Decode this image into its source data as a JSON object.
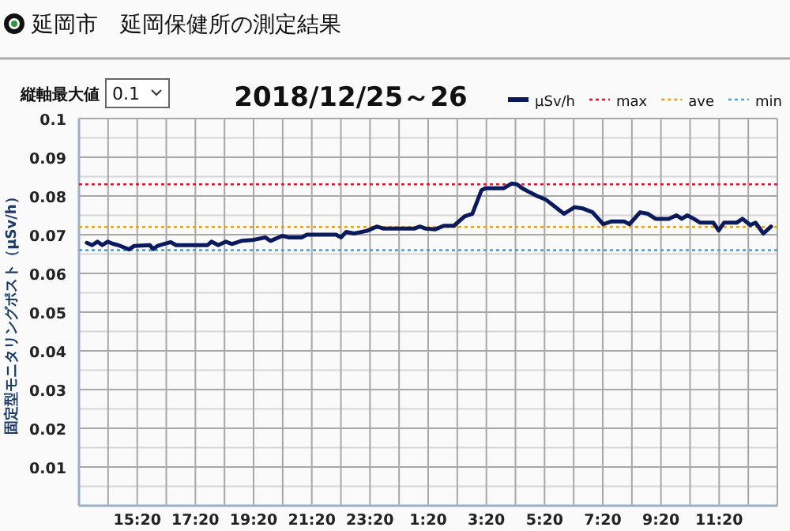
{
  "chart_data": {
    "type": "line",
    "title": "延岡市　延岡保健所の測定結果",
    "subtitle": "2018/12/25～26",
    "annotations": [
      "縦軸最大値",
      "0.1"
    ],
    "ylabel": "固定型モニタリングポスト（μSv/h）",
    "xlim": [
      "2018-12-25T13:20",
      "2018-12-26T13:20"
    ],
    "ylim": [
      0,
      0.1
    ],
    "xticks": [
      {
        "value": "2018-12-25T14:20",
        "label": null
      },
      {
        "value": "2018-12-25T15:20",
        "label": "15:20"
      },
      {
        "value": "2018-12-25T16:20",
        "label": null
      },
      {
        "value": "2018-12-25T17:20",
        "label": "17:20"
      },
      {
        "value": "2018-12-25T18:20",
        "label": null
      },
      {
        "value": "2018-12-25T19:20",
        "label": "19:20"
      },
      {
        "value": "2018-12-25T20:20",
        "label": null
      },
      {
        "value": "2018-12-25T21:20",
        "label": "21:20"
      },
      {
        "value": "2018-12-25T22:20",
        "label": null
      },
      {
        "value": "2018-12-25T23:20",
        "label": "23:20"
      },
      {
        "value": "2018-12-26T00:20",
        "label": null
      },
      {
        "value": "2018-12-26T01:20",
        "label": "1:20"
      },
      {
        "value": "2018-12-26T02:20",
        "label": null
      },
      {
        "value": "2018-12-26T03:20",
        "label": "3:20"
      },
      {
        "value": "2018-12-26T04:20",
        "label": null
      },
      {
        "value": "2018-12-26T05:20",
        "label": "5:20"
      },
      {
        "value": "2018-12-26T06:20",
        "label": null
      },
      {
        "value": "2018-12-26T07:20",
        "label": "7:20"
      },
      {
        "value": "2018-12-26T08:20",
        "label": null
      },
      {
        "value": "2018-12-26T09:20",
        "label": "9:20"
      },
      {
        "value": "2018-12-26T10:20",
        "label": null
      },
      {
        "value": "2018-12-26T11:20",
        "label": "11:20"
      },
      {
        "value": "2018-12-26T12:20",
        "label": null
      }
    ],
    "yticks": [
      {
        "value": 0.005,
        "label": null
      },
      0.01,
      {
        "value": 0.015,
        "label": null
      },
      0.02,
      {
        "value": 0.025,
        "label": null
      },
      0.03,
      {
        "value": 0.035,
        "label": null
      },
      0.04,
      {
        "value": 0.045,
        "label": null
      },
      0.05,
      {
        "value": 0.055,
        "label": null
      },
      0.06,
      {
        "value": 0.065,
        "label": null
      },
      0.07,
      {
        "value": 0.075,
        "label": null
      },
      0.08,
      {
        "value": 0.085,
        "label": null
      },
      0.09,
      {
        "value": 0.095,
        "label": null
      },
      0.1
    ],
    "grid": true,
    "legend": "top right",
    "series": [
      {
        "name": "μSv/h",
        "color": "#0a1a5c",
        "x": [
          "2018-12-25T13:36",
          "2018-12-25T13:47",
          "2018-12-25T13:58",
          "2018-12-25T14:08",
          "2018-12-25T14:19",
          "2018-12-25T14:31",
          "2018-12-25T14:41",
          "2018-12-25T15:03",
          "2018-12-25T15:14",
          "2018-12-25T15:46",
          "2018-12-25T15:53",
          "2018-12-25T16:02",
          "2018-12-25T16:29",
          "2018-12-25T16:40",
          "2018-12-25T17:45",
          "2018-12-25T17:53",
          "2018-12-25T18:07",
          "2018-12-25T18:23",
          "2018-12-25T18:35",
          "2018-12-25T18:55",
          "2018-12-25T19:17",
          "2018-12-25T19:44",
          "2018-12-25T19:55",
          "2018-12-25T20:19",
          "2018-12-25T20:32",
          "2018-12-25T20:59",
          "2018-12-25T21:10",
          "2018-12-25T22:10",
          "2018-12-25T22:20",
          "2018-12-25T22:31",
          "2018-12-25T22:47",
          "2018-12-25T23:14",
          "2018-12-25T23:34",
          "2018-12-25T23:47",
          "2018-12-26T00:52",
          "2018-12-26T01:03",
          "2018-12-26T01:14",
          "2018-12-26T01:35",
          "2018-12-26T01:52",
          "2018-12-26T02:13",
          "2018-12-26T02:35",
          "2018-12-26T02:51",
          "2018-12-26T03:10",
          "2018-12-26T03:18",
          "2018-12-26T03:56",
          "2018-12-26T04:12",
          "2018-12-26T04:23",
          "2018-12-26T04:34",
          "2018-12-26T04:50",
          "2018-12-26T05:06",
          "2018-12-26T05:22",
          "2018-12-26T06:00",
          "2018-12-26T06:22",
          "2018-12-26T06:38",
          "2018-12-26T06:59",
          "2018-12-26T07:21",
          "2018-12-26T07:37",
          "2018-12-26T08:04",
          "2018-12-26T08:15",
          "2018-12-26T08:37",
          "2018-12-26T08:53",
          "2018-12-26T09:09",
          "2018-12-26T09:36",
          "2018-12-26T09:52",
          "2018-12-26T10:03",
          "2018-12-26T10:14",
          "2018-12-26T10:25",
          "2018-12-26T10:41",
          "2018-12-26T11:08",
          "2018-12-26T11:19",
          "2018-12-26T11:30",
          "2018-12-26T11:56",
          "2018-12-26T12:08",
          "2018-12-26T12:24",
          "2018-12-26T12:35",
          "2018-12-26T12:51",
          "2018-12-26T13:07"
        ],
        "values": [
          0.0679,
          0.0673,
          0.0682,
          0.0673,
          0.0682,
          0.0676,
          0.0673,
          0.0662,
          0.0671,
          0.0673,
          0.0663,
          0.0671,
          0.0681,
          0.0673,
          0.0673,
          0.0682,
          0.0673,
          0.0682,
          0.0676,
          0.0684,
          0.0686,
          0.0693,
          0.0684,
          0.0697,
          0.0693,
          0.0693,
          0.07,
          0.07,
          0.0693,
          0.0707,
          0.0703,
          0.071,
          0.0721,
          0.0716,
          0.0716,
          0.0721,
          0.0716,
          0.0714,
          0.0723,
          0.0723,
          0.0747,
          0.0754,
          0.0815,
          0.082,
          0.082,
          0.0832,
          0.083,
          0.082,
          0.0809,
          0.0799,
          0.0791,
          0.0754,
          0.0771,
          0.0768,
          0.0758,
          0.0727,
          0.0734,
          0.0734,
          0.0727,
          0.0758,
          0.0754,
          0.0741,
          0.0741,
          0.075,
          0.0741,
          0.075,
          0.0743,
          0.0731,
          0.0731,
          0.0711,
          0.0731,
          0.0731,
          0.0741,
          0.0725,
          0.0731,
          0.0703,
          0.0721
        ]
      }
    ],
    "ref_lines": [
      {
        "axis": "y",
        "value": 0.083,
        "label": "max",
        "color": "#e8102a",
        "line_style": "dotted"
      },
      {
        "axis": "y",
        "value": 0.072,
        "label": "ave",
        "color": "#f0a010",
        "line_style": "dotted"
      },
      {
        "axis": "y",
        "value": 0.066,
        "label": "min",
        "color": "#40a8e0",
        "line_style": "dotted"
      }
    ]
  }
}
